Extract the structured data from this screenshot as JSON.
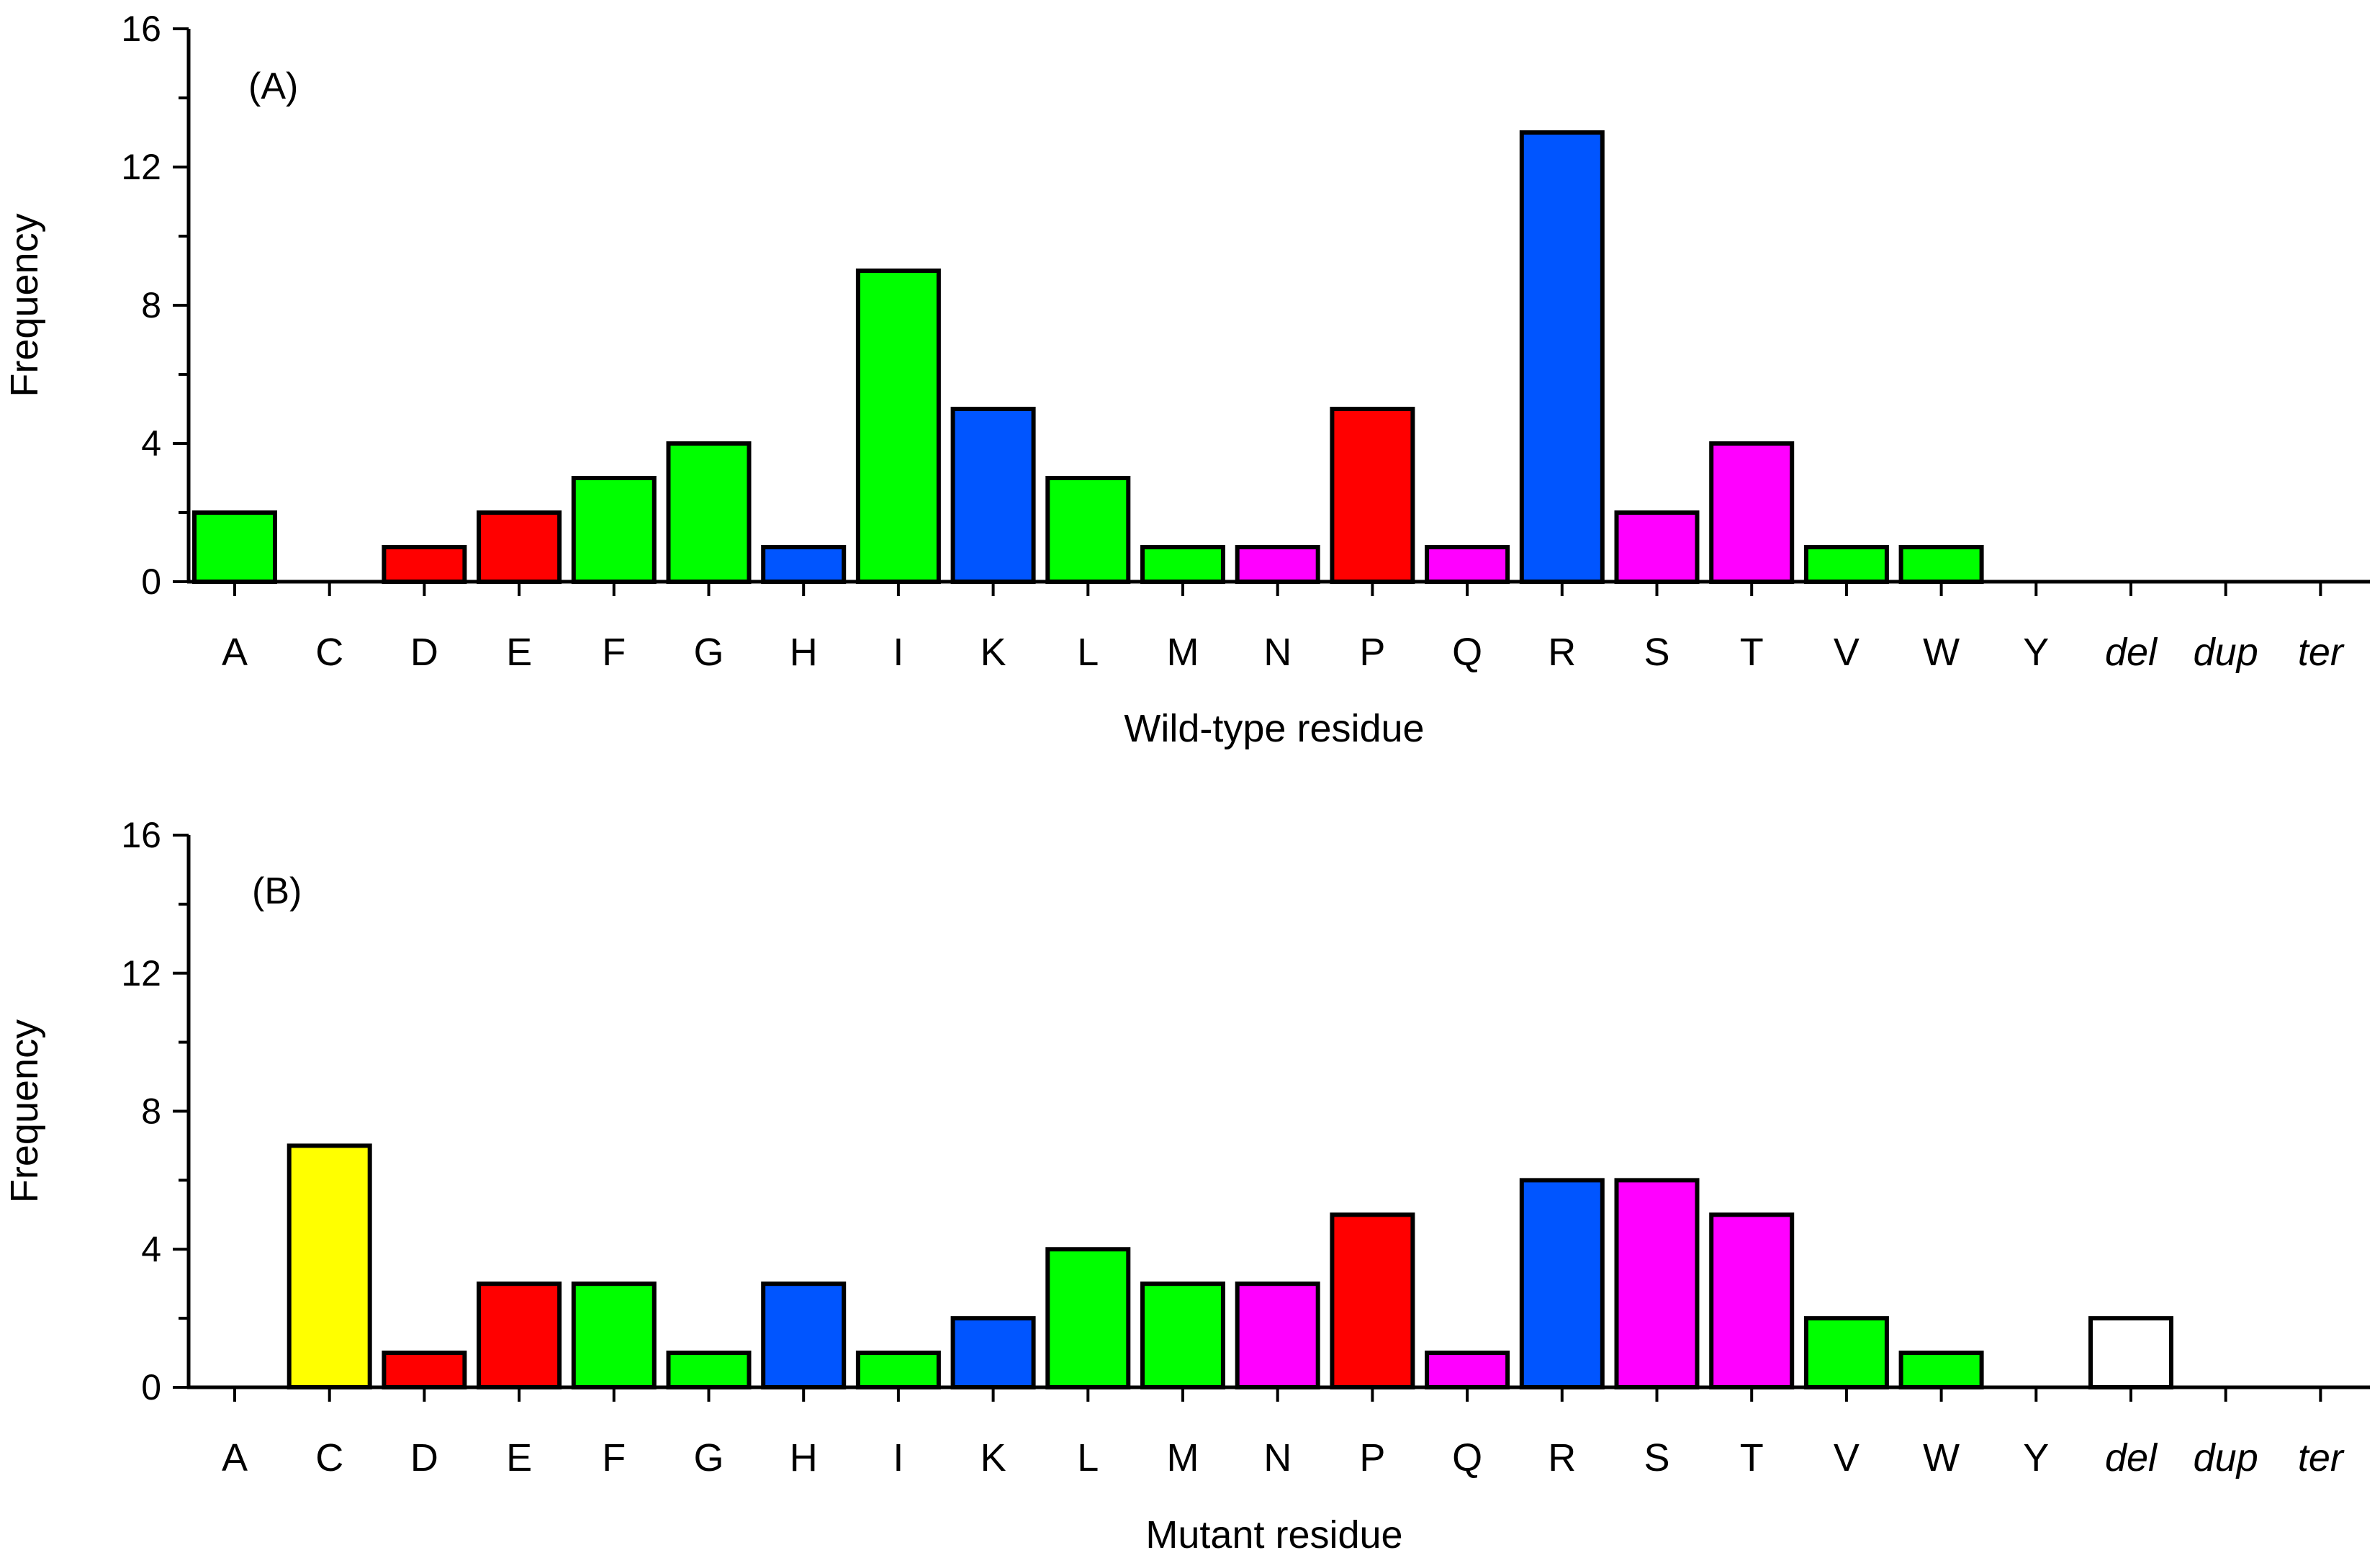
{
  "colors": {
    "hydrophobic": "#00ff00",
    "acidic": "#ff0000",
    "basic": "#0055ff",
    "polar": "#ff00ff",
    "cysteine": "#ffff00",
    "other": "#ffffff"
  },
  "chart_data": [
    {
      "type": "bar",
      "panel_label": "(A)",
      "xlabel": "Wild-type residue",
      "ylabel": "Frequency",
      "ylim": [
        0,
        16
      ],
      "yticks": [
        0,
        4,
        8,
        12,
        16
      ],
      "categories": [
        "A",
        "C",
        "D",
        "E",
        "F",
        "G",
        "H",
        "I",
        "K",
        "L",
        "M",
        "N",
        "P",
        "Q",
        "R",
        "S",
        "T",
        "V",
        "W",
        "Y",
        "del",
        "dup",
        "ter"
      ],
      "italic_categories": [
        "del",
        "dup",
        "ter"
      ],
      "values": [
        2,
        0,
        1,
        2,
        3,
        4,
        1,
        9,
        5,
        3,
        1,
        1,
        5,
        1,
        13,
        2,
        4,
        1,
        1,
        0,
        0,
        0,
        0
      ],
      "bar_colors": [
        "hydrophobic",
        "hydrophobic",
        "acidic",
        "acidic",
        "hydrophobic",
        "hydrophobic",
        "basic",
        "hydrophobic",
        "basic",
        "hydrophobic",
        "hydrophobic",
        "polar",
        "acidic",
        "polar",
        "basic",
        "polar",
        "polar",
        "hydrophobic",
        "hydrophobic",
        "hydrophobic",
        "other",
        "other",
        "other"
      ]
    },
    {
      "type": "bar",
      "panel_label": "(B)",
      "xlabel": "Mutant residue",
      "ylabel": "Frequency",
      "ylim": [
        0,
        16
      ],
      "yticks": [
        0,
        4,
        8,
        12,
        16
      ],
      "categories": [
        "A",
        "C",
        "D",
        "E",
        "F",
        "G",
        "H",
        "I",
        "K",
        "L",
        "M",
        "N",
        "P",
        "Q",
        "R",
        "S",
        "T",
        "V",
        "W",
        "Y",
        "del",
        "dup",
        "ter"
      ],
      "italic_categories": [
        "del",
        "dup",
        "ter"
      ],
      "values": [
        0,
        7,
        1,
        3,
        3,
        1,
        3,
        1,
        2,
        4,
        3,
        3,
        5,
        1,
        6,
        6,
        5,
        2,
        1,
        0,
        2,
        0,
        0
      ],
      "bar_colors": [
        "hydrophobic",
        "cysteine",
        "acidic",
        "acidic",
        "hydrophobic",
        "hydrophobic",
        "basic",
        "hydrophobic",
        "basic",
        "hydrophobic",
        "hydrophobic",
        "polar",
        "acidic",
        "polar",
        "basic",
        "polar",
        "polar",
        "hydrophobic",
        "hydrophobic",
        "hydrophobic",
        "other",
        "other",
        "other"
      ]
    }
  ]
}
